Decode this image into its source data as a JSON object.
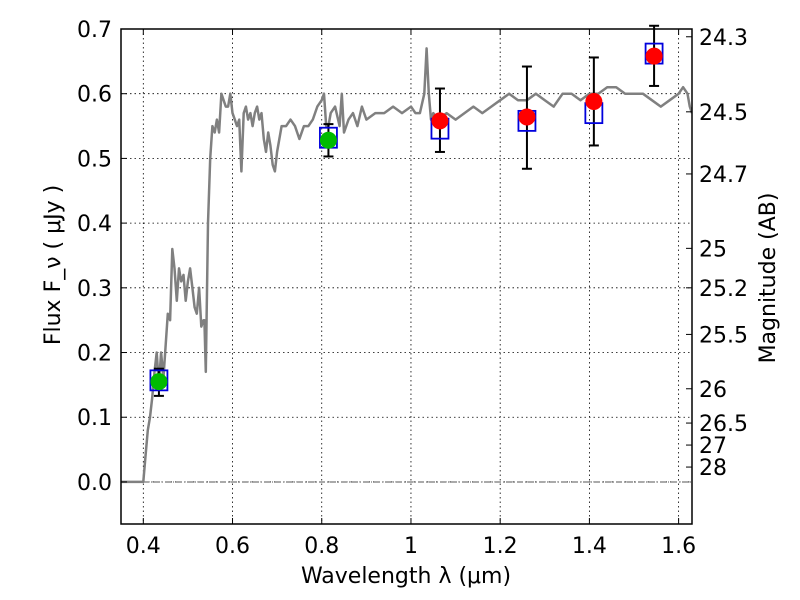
{
  "chart_data": {
    "type": "line",
    "xlabel": "Wavelength  λ (μm)",
    "ylabel": "Flux  F_ν  ( μJy )",
    "ylabel_right": "Magnitude (AB)",
    "xlim": [
      0.35,
      1.63
    ],
    "ylim": [
      -0.065,
      0.7
    ],
    "grid": true,
    "x_ticks": [
      0.4,
      0.6,
      0.8,
      1.0,
      1.2,
      1.4,
      1.6
    ],
    "x_tick_labels": [
      "0.4",
      "0.6",
      "0.8",
      "1",
      "1.2",
      "1.4",
      "1.6"
    ],
    "y_ticks": [
      0.0,
      0.1,
      0.2,
      0.3,
      0.4,
      0.5,
      0.6,
      0.7
    ],
    "y_tick_labels": [
      "0.0",
      "0.1",
      "0.2",
      "0.3",
      "0.4",
      "0.5",
      "0.6",
      "0.7"
    ],
    "right_ticks": [
      {
        "label": "24.3",
        "flux": 0.688
      },
      {
        "label": "24.5",
        "flux": 0.572
      },
      {
        "label": "24.7",
        "flux": 0.476
      },
      {
        "label": "25",
        "flux": 0.361
      },
      {
        "label": "25.2",
        "flux": 0.3
      },
      {
        "label": "25.5",
        "flux": 0.228
      },
      {
        "label": "26",
        "flux": 0.144
      },
      {
        "label": "26.5",
        "flux": 0.091
      },
      {
        "label": "27",
        "flux": 0.057
      },
      {
        "label": "28",
        "flux": 0.023
      }
    ],
    "colors": {
      "model": "#808080",
      "green": "#00bb00",
      "red": "#ff0000",
      "box": "#0000dd",
      "errorbar": "#000000",
      "zero_line": "#555555"
    },
    "series": [
      {
        "type": "line",
        "x": [
          0.35,
          0.4,
          0.405,
          0.41,
          0.415,
          0.42,
          0.425,
          0.43,
          0.435,
          0.44,
          0.445,
          0.45,
          0.455,
          0.46,
          0.465,
          0.47,
          0.475,
          0.48,
          0.485,
          0.49,
          0.495,
          0.5,
          0.505,
          0.51,
          0.515,
          0.52,
          0.525,
          0.53,
          0.535,
          0.537,
          0.54,
          0.545,
          0.55,
          0.555,
          0.56,
          0.565,
          0.57,
          0.575,
          0.58,
          0.585,
          0.59,
          0.595,
          0.6,
          0.605,
          0.61,
          0.615,
          0.62,
          0.625,
          0.63,
          0.635,
          0.64,
          0.645,
          0.65,
          0.655,
          0.66,
          0.665,
          0.67,
          0.675,
          0.68,
          0.685,
          0.69,
          0.695,
          0.7,
          0.71,
          0.72,
          0.73,
          0.74,
          0.75,
          0.76,
          0.77,
          0.78,
          0.79,
          0.8,
          0.805,
          0.81,
          0.815,
          0.82,
          0.83,
          0.84,
          0.845,
          0.85,
          0.86,
          0.87,
          0.88,
          0.89,
          0.9,
          0.92,
          0.94,
          0.96,
          0.98,
          1.0,
          1.01,
          1.02,
          1.03,
          1.035,
          1.04,
          1.045,
          1.05,
          1.06,
          1.08,
          1.1,
          1.12,
          1.14,
          1.16,
          1.18,
          1.2,
          1.22,
          1.24,
          1.26,
          1.28,
          1.3,
          1.32,
          1.34,
          1.36,
          1.38,
          1.4,
          1.42,
          1.44,
          1.46,
          1.48,
          1.5,
          1.52,
          1.54,
          1.56,
          1.58,
          1.6,
          1.61,
          1.62,
          1.625,
          1.63
        ],
        "y": [
          0.0,
          0.0,
          0.04,
          0.08,
          0.1,
          0.13,
          0.17,
          0.2,
          0.15,
          0.2,
          0.16,
          0.21,
          0.26,
          0.25,
          0.36,
          0.33,
          0.28,
          0.33,
          0.31,
          0.32,
          0.28,
          0.31,
          0.33,
          0.3,
          0.27,
          0.26,
          0.3,
          0.24,
          0.25,
          0.25,
          0.17,
          0.4,
          0.5,
          0.55,
          0.54,
          0.56,
          0.54,
          0.6,
          0.59,
          0.58,
          0.58,
          0.6,
          0.57,
          0.56,
          0.55,
          0.56,
          0.48,
          0.57,
          0.58,
          0.56,
          0.57,
          0.55,
          0.57,
          0.58,
          0.56,
          0.57,
          0.53,
          0.51,
          0.54,
          0.52,
          0.49,
          0.48,
          0.51,
          0.55,
          0.55,
          0.56,
          0.55,
          0.53,
          0.55,
          0.55,
          0.56,
          0.58,
          0.59,
          0.6,
          0.55,
          0.55,
          0.57,
          0.58,
          0.55,
          0.6,
          0.54,
          0.56,
          0.57,
          0.55,
          0.58,
          0.56,
          0.57,
          0.57,
          0.58,
          0.57,
          0.58,
          0.57,
          0.57,
          0.6,
          0.67,
          0.6,
          0.56,
          0.57,
          0.56,
          0.57,
          0.56,
          0.57,
          0.58,
          0.57,
          0.58,
          0.59,
          0.6,
          0.59,
          0.59,
          0.6,
          0.59,
          0.58,
          0.6,
          0.6,
          0.59,
          0.6,
          0.6,
          0.61,
          0.61,
          0.6,
          0.6,
          0.6,
          0.59,
          0.58,
          0.59,
          0.6,
          0.61,
          0.6,
          0.58,
          0.57
        ]
      },
      {
        "type": "points",
        "marker": "circle",
        "color": "green",
        "x": [
          0.435,
          0.815
        ],
        "y": [
          0.155,
          0.528
        ],
        "yerr_low": [
          0.133,
          0.503
        ],
        "yerr_high": [
          0.175,
          0.553
        ]
      },
      {
        "type": "points",
        "marker": "circle",
        "color": "red",
        "x": [
          1.065,
          1.26,
          1.41,
          1.545
        ],
        "y": [
          0.558,
          0.564,
          0.588,
          0.658
        ],
        "yerr_low": [
          0.51,
          0.484,
          0.52,
          0.612
        ],
        "yerr_high": [
          0.608,
          0.642,
          0.656,
          0.705
        ]
      },
      {
        "type": "points",
        "marker": "open-square",
        "color": "box",
        "x": [
          0.435,
          0.815,
          1.065,
          1.26,
          1.41,
          1.545
        ],
        "y": [
          0.157,
          0.532,
          0.546,
          0.558,
          0.57,
          0.662
        ]
      }
    ]
  }
}
